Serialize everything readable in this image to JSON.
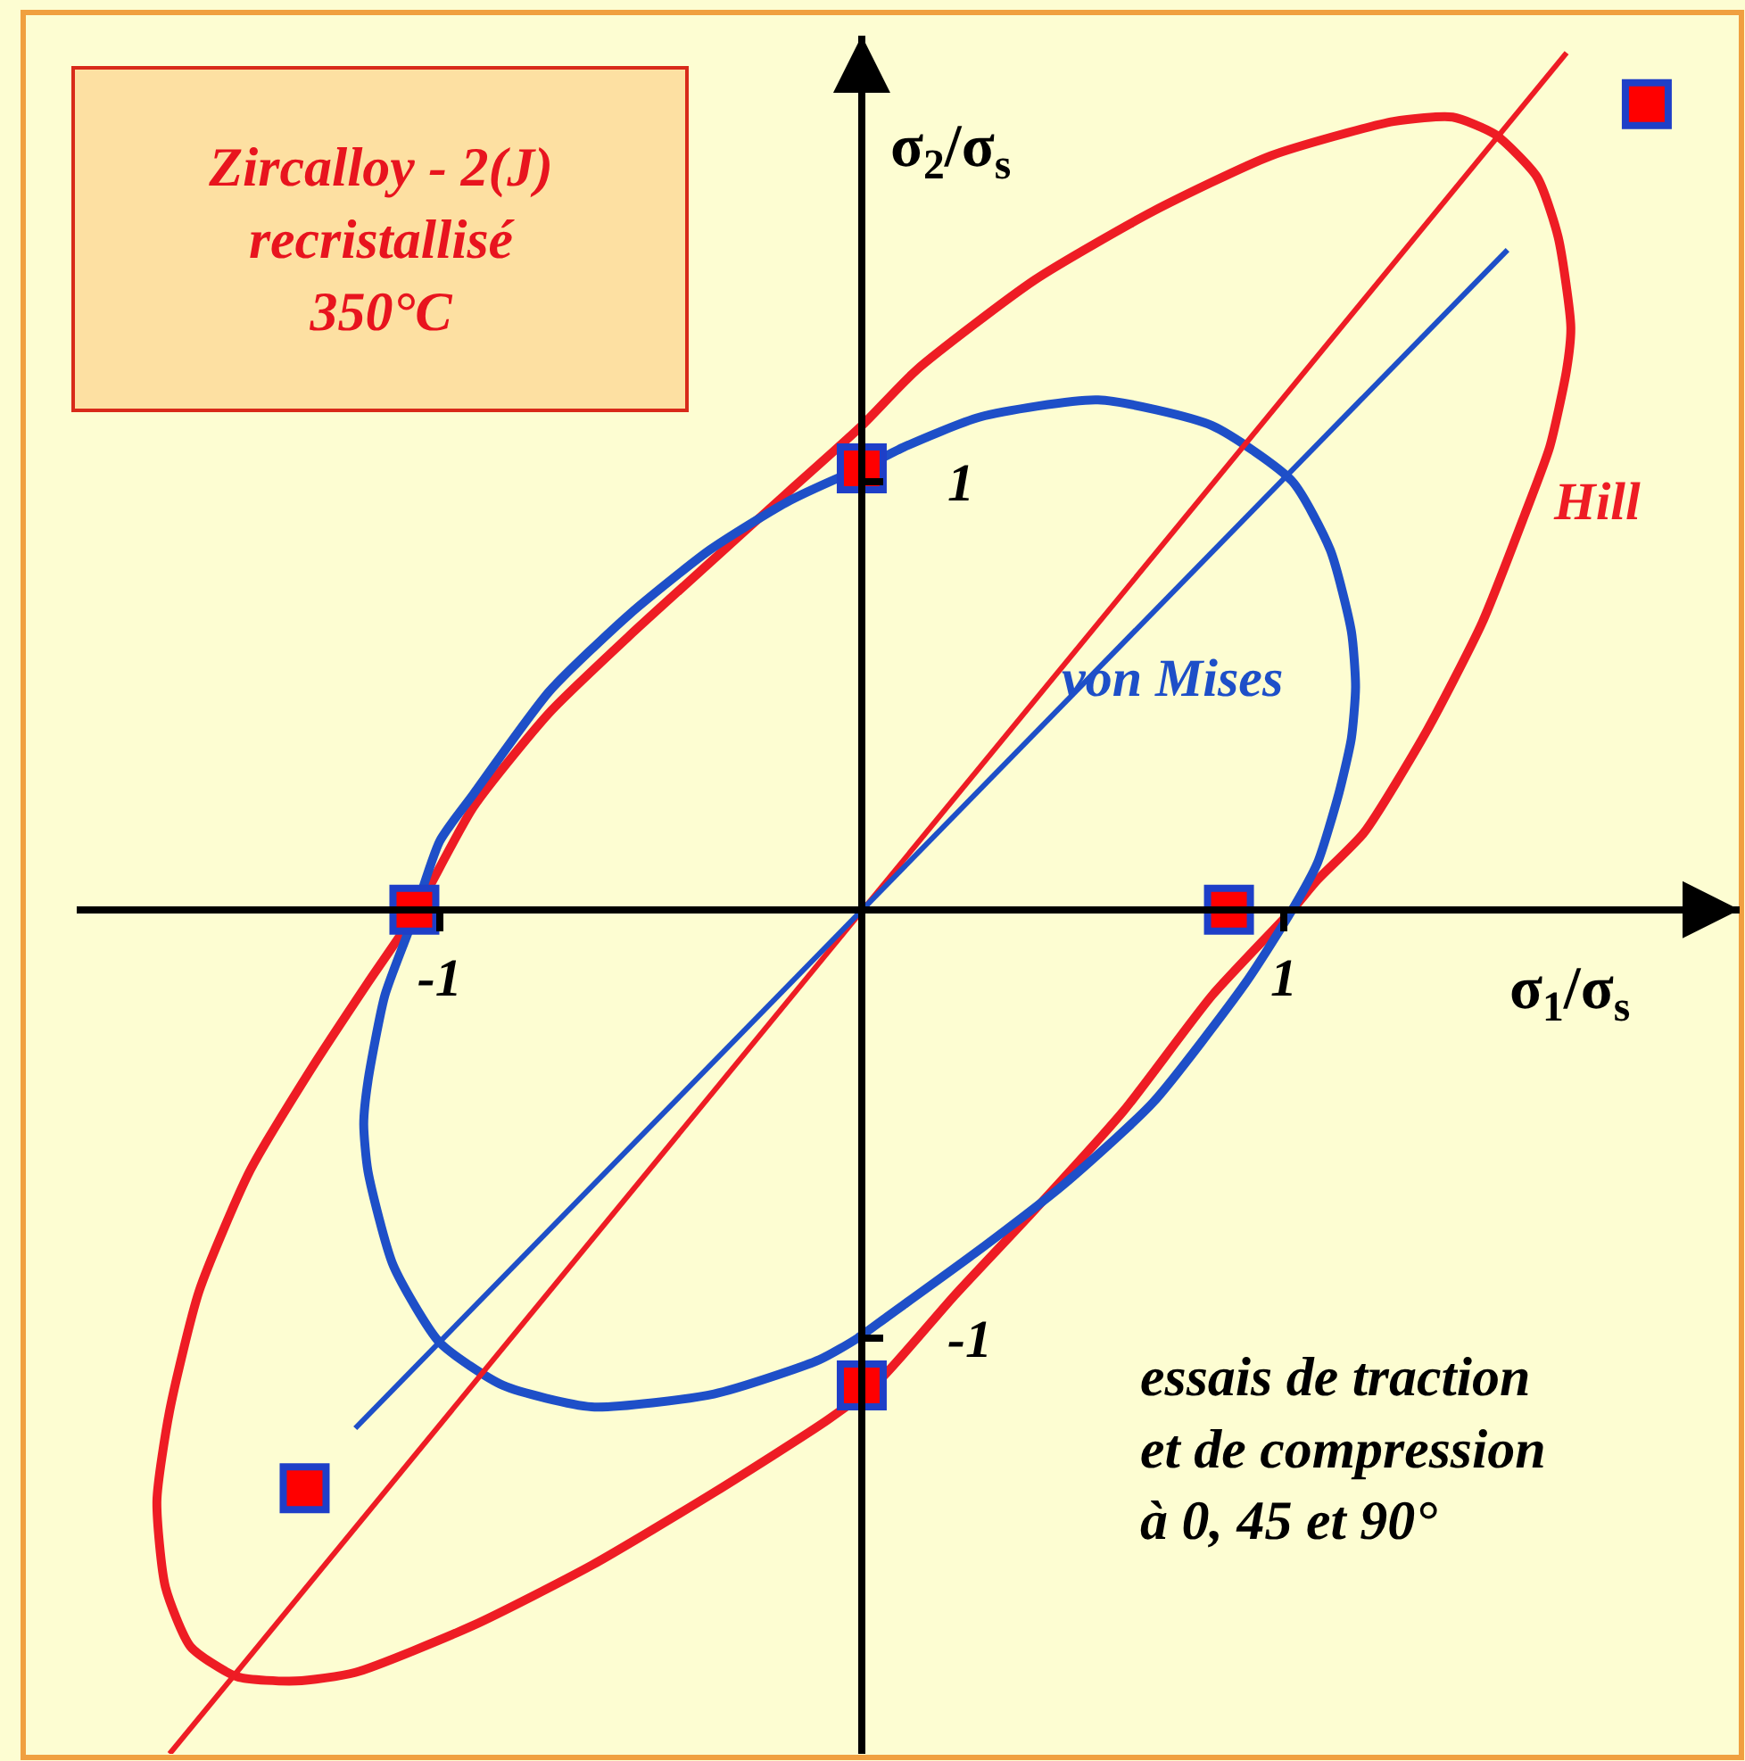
{
  "chart_data": {
    "type": "line",
    "title": "Zircalloy - 2(J)\nrecristallisé\n350°C",
    "xlabel": "σ$_{1}$/σ$_{s}$",
    "ylabel": "σ$_{2}$/σ$_{s}$",
    "annotations": [
      "Hill",
      "von Mises",
      "essais de traction\net de compression\nà 0, 45 et 90°"
    ],
    "xlim": [
      -1.86,
      2.08
    ],
    "ylim": [
      -1.97,
      2.04
    ],
    "xticks": [
      -1,
      1
    ],
    "yticks": [
      -1,
      1
    ],
    "grid": false,
    "series": [
      {
        "color": "#ee1c24",
        "x": [
          -1.64,
          1.67
        ],
        "values": [
          -1.97,
          2.0
        ]
      },
      {
        "color": "#1e4fc8",
        "x": [
          -1.2,
          1.53
        ],
        "values": [
          -1.21,
          1.54
        ]
      },
      {
        "type": "scatter",
        "marker": "square",
        "color": "#ff0000",
        "x": [
          0.0,
          -1.06,
          0.87,
          0.0,
          1.86,
          -1.32
        ],
        "values": [
          1.03,
          0.0,
          0.0,
          -1.11,
          1.88,
          -1.35
        ]
      }
    ]
  }
}
